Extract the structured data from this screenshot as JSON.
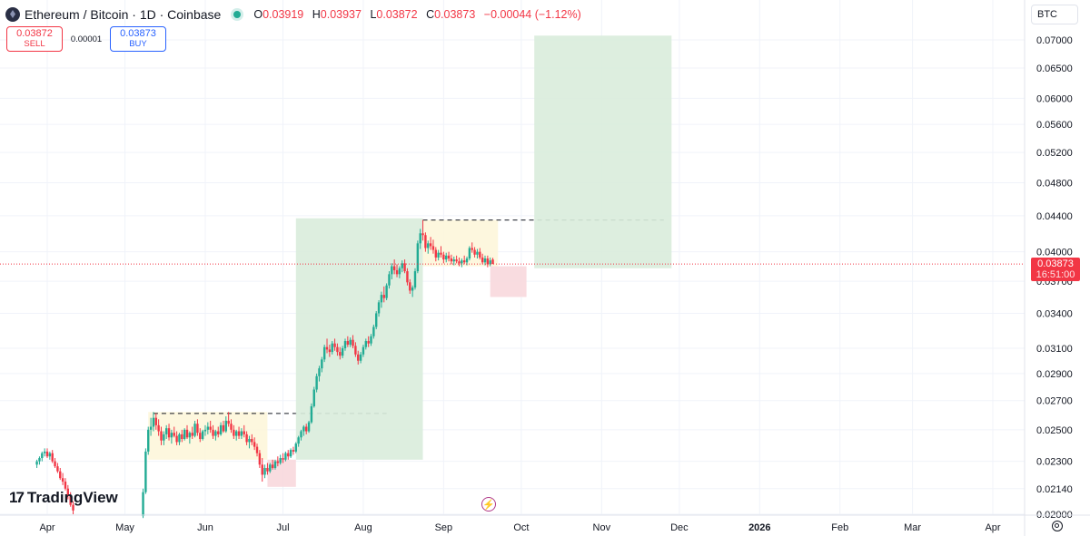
{
  "legend": {
    "title": "Ethereum / Bitcoin · 1D · Coinbase",
    "open_label": "O",
    "open": "0.03919",
    "high_label": "H",
    "high": "0.03937",
    "low_label": "L",
    "low": "0.03872",
    "close_label": "C",
    "close": "0.03873",
    "change": "−0.00044 (−1.12%)"
  },
  "trade": {
    "sell_price": "0.03872",
    "sell_label": "SELL",
    "spread": "0.00001",
    "buy_price": "0.03873",
    "buy_label": "BUY"
  },
  "currency": "BTC",
  "price_tag": {
    "price": "0.03873",
    "timer": "16:51:00"
  },
  "brand": {
    "name": "TradingView"
  },
  "colors": {
    "up": "#22ab94",
    "down": "#f23645",
    "target": "#d9ecdc",
    "stop": "#f8d6da",
    "range": "#fdf6d8"
  },
  "chart_data": {
    "type": "candlestick",
    "symbol": "Ethereum / Bitcoin",
    "interval": "1D",
    "exchange": "Coinbase",
    "y_axis": {
      "scale": "log",
      "ticks": [
        "0.07000",
        "0.06500",
        "0.06000",
        "0.05600",
        "0.05200",
        "0.04800",
        "0.04400",
        "0.04000",
        "0.03700",
        "0.03400",
        "0.03100",
        "0.02900",
        "0.02700",
        "0.02500",
        "0.02300",
        "0.02140",
        "0.02000"
      ]
    },
    "x_axis": {
      "ticks": [
        {
          "label": "Apr",
          "date": "2025-04-01",
          "bold": false
        },
        {
          "label": "May",
          "date": "2025-05-01",
          "bold": false
        },
        {
          "label": "Jun",
          "date": "2025-06-01",
          "bold": false
        },
        {
          "label": "Jul",
          "date": "2025-07-01",
          "bold": false
        },
        {
          "label": "Aug",
          "date": "2025-08-01",
          "bold": false
        },
        {
          "label": "Sep",
          "date": "2025-09-01",
          "bold": false
        },
        {
          "label": "Oct",
          "date": "2025-10-01",
          "bold": false
        },
        {
          "label": "Nov",
          "date": "2025-11-01",
          "bold": false
        },
        {
          "label": "Dec",
          "date": "2025-12-01",
          "bold": false
        },
        {
          "label": "2026",
          "date": "2026-01-01",
          "bold": true
        },
        {
          "label": "Feb",
          "date": "2026-02-01",
          "bold": false
        },
        {
          "label": "Mar",
          "date": "2026-03-01",
          "bold": false
        },
        {
          "label": "Apr",
          "date": "2026-04-01",
          "bold": false
        }
      ]
    },
    "last_price": 0.03873,
    "annotations": [
      {
        "type": "range",
        "from": "2025-05-10",
        "to": "2025-06-25",
        "top": 0.0262,
        "bottom": 0.0231
      },
      {
        "type": "dashed_line",
        "from": "2025-05-12",
        "to": "2025-08-10",
        "y": 0.0261
      },
      {
        "type": "stop_zone",
        "from": "2025-06-25",
        "to": "2025-07-06",
        "top": 0.0231,
        "bottom": 0.0215
      },
      {
        "type": "target_zone",
        "from": "2025-07-06",
        "to": "2025-08-24",
        "top": 0.0437,
        "bottom": 0.0231
      },
      {
        "type": "range",
        "from": "2025-08-24",
        "to": "2025-09-22",
        "top": 0.0435,
        "bottom": 0.0385
      },
      {
        "type": "dashed_line",
        "from": "2025-08-24",
        "to": "2025-11-25",
        "y": 0.0435
      },
      {
        "type": "stop_zone",
        "from": "2025-09-19",
        "to": "2025-10-03",
        "top": 0.0385,
        "bottom": 0.0355
      },
      {
        "type": "target_zone",
        "from": "2025-10-06",
        "to": "2025-11-28",
        "top": 0.0708,
        "bottom": 0.0383
      }
    ],
    "candles": [
      [
        "2025-03-28",
        0.0228,
        0.0231,
        0.0226,
        0.023
      ],
      [
        "2025-03-29",
        0.023,
        0.0233,
        0.0228,
        0.0232
      ],
      [
        "2025-03-30",
        0.0232,
        0.0236,
        0.023,
        0.0235
      ],
      [
        "2025-03-31",
        0.0235,
        0.0238,
        0.0233,
        0.0236
      ],
      [
        "2025-04-01",
        0.0236,
        0.0238,
        0.0232,
        0.0233
      ],
      [
        "2025-04-02",
        0.0233,
        0.0236,
        0.0231,
        0.0235
      ],
      [
        "2025-04-03",
        0.0235,
        0.0237,
        0.0229,
        0.023
      ],
      [
        "2025-04-04",
        0.023,
        0.0232,
        0.0226,
        0.0227
      ],
      [
        "2025-04-05",
        0.0227,
        0.0229,
        0.0223,
        0.0224
      ],
      [
        "2025-04-06",
        0.0224,
        0.0226,
        0.0219,
        0.022
      ],
      [
        "2025-04-07",
        0.022,
        0.0223,
        0.0216,
        0.0218
      ],
      [
        "2025-04-08",
        0.0218,
        0.022,
        0.0213,
        0.0214
      ],
      [
        "2025-04-09",
        0.0214,
        0.0216,
        0.0208,
        0.021
      ],
      [
        "2025-04-10",
        0.021,
        0.0212,
        0.0204,
        0.0205
      ],
      [
        "2025-04-11",
        0.0205,
        0.0207,
        0.02,
        0.0202
      ],
      [
        "2025-05-08",
        0.0199,
        0.0214,
        0.0198,
        0.0212
      ],
      [
        "2025-05-09",
        0.0212,
        0.0238,
        0.0211,
        0.0236
      ],
      [
        "2025-05-10",
        0.0236,
        0.0252,
        0.0234,
        0.025
      ],
      [
        "2025-05-11",
        0.025,
        0.0258,
        0.0246,
        0.0252
      ],
      [
        "2025-05-12",
        0.0252,
        0.0262,
        0.0249,
        0.0258
      ],
      [
        "2025-05-13",
        0.0258,
        0.0261,
        0.025,
        0.0253
      ],
      [
        "2025-05-14",
        0.0253,
        0.0257,
        0.0246,
        0.0249
      ],
      [
        "2025-05-15",
        0.0249,
        0.0252,
        0.024,
        0.0243
      ],
      [
        "2025-05-16",
        0.0243,
        0.0249,
        0.024,
        0.0247
      ],
      [
        "2025-05-17",
        0.0247,
        0.0253,
        0.0244,
        0.0251
      ],
      [
        "2025-05-18",
        0.0251,
        0.0254,
        0.0243,
        0.0245
      ],
      [
        "2025-05-19",
        0.0245,
        0.025,
        0.0241,
        0.0248
      ],
      [
        "2025-05-20",
        0.0248,
        0.0252,
        0.0245,
        0.0246
      ],
      [
        "2025-05-21",
        0.0246,
        0.0249,
        0.024,
        0.0242
      ],
      [
        "2025-05-22",
        0.0242,
        0.0248,
        0.024,
        0.0247
      ],
      [
        "2025-05-23",
        0.0247,
        0.025,
        0.0242,
        0.0244
      ],
      [
        "2025-05-24",
        0.0244,
        0.0251,
        0.0243,
        0.025
      ],
      [
        "2025-05-25",
        0.025,
        0.0253,
        0.0244,
        0.0245
      ],
      [
        "2025-05-26",
        0.0245,
        0.0249,
        0.0241,
        0.0248
      ],
      [
        "2025-05-27",
        0.0248,
        0.0252,
        0.0244,
        0.0246
      ],
      [
        "2025-05-28",
        0.0246,
        0.0256,
        0.0245,
        0.0254
      ],
      [
        "2025-05-29",
        0.0254,
        0.0257,
        0.0246,
        0.0248
      ],
      [
        "2025-05-30",
        0.0248,
        0.0251,
        0.0242,
        0.0244
      ],
      [
        "2025-05-31",
        0.0244,
        0.025,
        0.0243,
        0.0249
      ],
      [
        "2025-06-01",
        0.0249,
        0.0253,
        0.0246,
        0.025
      ],
      [
        "2025-06-02",
        0.025,
        0.0255,
        0.0247,
        0.0252
      ],
      [
        "2025-06-03",
        0.0252,
        0.0256,
        0.0248,
        0.025
      ],
      [
        "2025-06-04",
        0.025,
        0.0253,
        0.0244,
        0.0246
      ],
      [
        "2025-06-05",
        0.0246,
        0.025,
        0.0243,
        0.0249
      ],
      [
        "2025-06-06",
        0.0249,
        0.0252,
        0.0245,
        0.0247
      ],
      [
        "2025-06-07",
        0.0247,
        0.0255,
        0.0246,
        0.0253
      ],
      [
        "2025-06-08",
        0.0253,
        0.0256,
        0.0248,
        0.0249
      ],
      [
        "2025-06-09",
        0.0249,
        0.0259,
        0.0248,
        0.0256
      ],
      [
        "2025-06-10",
        0.0256,
        0.0262,
        0.0252,
        0.0254
      ],
      [
        "2025-06-11",
        0.0254,
        0.0257,
        0.0248,
        0.025
      ],
      [
        "2025-06-12",
        0.025,
        0.0253,
        0.0244,
        0.0246
      ],
      [
        "2025-06-13",
        0.0246,
        0.025,
        0.0243,
        0.0249
      ],
      [
        "2025-06-14",
        0.0249,
        0.0252,
        0.0244,
        0.0246
      ],
      [
        "2025-06-15",
        0.0246,
        0.0251,
        0.0244,
        0.0249
      ],
      [
        "2025-06-16",
        0.0249,
        0.0253,
        0.0245,
        0.0247
      ],
      [
        "2025-06-17",
        0.0247,
        0.0249,
        0.024,
        0.0242
      ],
      [
        "2025-06-18",
        0.0242,
        0.0246,
        0.0238,
        0.0244
      ],
      [
        "2025-06-19",
        0.0244,
        0.0247,
        0.024,
        0.0242
      ],
      [
        "2025-06-20",
        0.0242,
        0.0245,
        0.0237,
        0.0239
      ],
      [
        "2025-06-21",
        0.0239,
        0.0241,
        0.0233,
        0.0235
      ],
      [
        "2025-06-22",
        0.0235,
        0.0237,
        0.0226,
        0.0228
      ],
      [
        "2025-06-23",
        0.0228,
        0.0232,
        0.0218,
        0.0222
      ],
      [
        "2025-06-24",
        0.0222,
        0.0228,
        0.022,
        0.0226
      ],
      [
        "2025-06-25",
        0.0226,
        0.0229,
        0.0222,
        0.0224
      ],
      [
        "2025-06-26",
        0.0224,
        0.0229,
        0.0223,
        0.0228
      ],
      [
        "2025-06-27",
        0.0228,
        0.0231,
        0.0225,
        0.0226
      ],
      [
        "2025-06-28",
        0.0226,
        0.0231,
        0.0225,
        0.023
      ],
      [
        "2025-06-29",
        0.023,
        0.0233,
        0.0227,
        0.0229
      ],
      [
        "2025-06-30",
        0.0229,
        0.0234,
        0.0228,
        0.0232
      ],
      [
        "2025-07-01",
        0.0232,
        0.0235,
        0.0229,
        0.0231
      ],
      [
        "2025-07-02",
        0.0231,
        0.0236,
        0.023,
        0.0235
      ],
      [
        "2025-07-03",
        0.0235,
        0.0237,
        0.0231,
        0.0233
      ],
      [
        "2025-07-04",
        0.0233,
        0.0238,
        0.0232,
        0.0237
      ],
      [
        "2025-07-05",
        0.0237,
        0.0239,
        0.0234,
        0.0236
      ],
      [
        "2025-07-06",
        0.0236,
        0.0242,
        0.0235,
        0.0241
      ],
      [
        "2025-07-07",
        0.0241,
        0.0246,
        0.0239,
        0.0245
      ],
      [
        "2025-07-08",
        0.0245,
        0.025,
        0.0243,
        0.0249
      ],
      [
        "2025-07-09",
        0.0249,
        0.0253,
        0.0246,
        0.0252
      ],
      [
        "2025-07-10",
        0.0252,
        0.0254,
        0.0247,
        0.0249
      ],
      [
        "2025-07-11",
        0.0249,
        0.0256,
        0.0248,
        0.0255
      ],
      [
        "2025-07-12",
        0.0255,
        0.0268,
        0.0254,
        0.0266
      ],
      [
        "2025-07-13",
        0.0266,
        0.028,
        0.0265,
        0.0278
      ],
      [
        "2025-07-14",
        0.0278,
        0.029,
        0.0276,
        0.0288
      ],
      [
        "2025-07-15",
        0.0288,
        0.0296,
        0.0284,
        0.0294
      ],
      [
        "2025-07-16",
        0.0294,
        0.0303,
        0.0291,
        0.0301
      ],
      [
        "2025-07-17",
        0.0301,
        0.0313,
        0.0299,
        0.0311
      ],
      [
        "2025-07-18",
        0.0311,
        0.0318,
        0.0306,
        0.0309
      ],
      [
        "2025-07-19",
        0.0309,
        0.0313,
        0.0303,
        0.0307
      ],
      [
        "2025-07-20",
        0.0307,
        0.0316,
        0.0305,
        0.0314
      ],
      [
        "2025-07-21",
        0.0314,
        0.0318,
        0.0308,
        0.0311
      ],
      [
        "2025-07-22",
        0.0311,
        0.0314,
        0.0304,
        0.0307
      ],
      [
        "2025-07-23",
        0.0307,
        0.0311,
        0.0301,
        0.0304
      ],
      [
        "2025-07-24",
        0.0304,
        0.0312,
        0.0302,
        0.031
      ],
      [
        "2025-07-25",
        0.031,
        0.0318,
        0.0308,
        0.0316
      ],
      [
        "2025-07-26",
        0.0316,
        0.032,
        0.0311,
        0.0313
      ],
      [
        "2025-07-27",
        0.0313,
        0.0319,
        0.0311,
        0.0317
      ],
      [
        "2025-07-28",
        0.0317,
        0.0321,
        0.031,
        0.0312
      ],
      [
        "2025-07-29",
        0.0312,
        0.0315,
        0.0303,
        0.0305
      ],
      [
        "2025-07-30",
        0.0305,
        0.0308,
        0.0297,
        0.03
      ],
      [
        "2025-07-31",
        0.03,
        0.0307,
        0.0298,
        0.0305
      ],
      [
        "2025-08-01",
        0.0305,
        0.0313,
        0.0303,
        0.0311
      ],
      [
        "2025-08-02",
        0.0311,
        0.0318,
        0.0309,
        0.0316
      ],
      [
        "2025-08-03",
        0.0316,
        0.032,
        0.0311,
        0.0314
      ],
      [
        "2025-08-04",
        0.0314,
        0.0322,
        0.0312,
        0.032
      ],
      [
        "2025-08-05",
        0.032,
        0.033,
        0.0318,
        0.0328
      ],
      [
        "2025-08-06",
        0.0328,
        0.0342,
        0.0326,
        0.034
      ],
      [
        "2025-08-07",
        0.034,
        0.0352,
        0.0337,
        0.035
      ],
      [
        "2025-08-08",
        0.035,
        0.036,
        0.0345,
        0.0357
      ],
      [
        "2025-08-09",
        0.0357,
        0.0365,
        0.035,
        0.0354
      ],
      [
        "2025-08-10",
        0.0354,
        0.0368,
        0.0352,
        0.0366
      ],
      [
        "2025-08-11",
        0.0366,
        0.038,
        0.0363,
        0.0377
      ],
      [
        "2025-08-12",
        0.0377,
        0.0388,
        0.0372,
        0.0385
      ],
      [
        "2025-08-13",
        0.0385,
        0.0392,
        0.0377,
        0.0381
      ],
      [
        "2025-08-14",
        0.0381,
        0.0387,
        0.0374,
        0.0377
      ],
      [
        "2025-08-15",
        0.0377,
        0.0385,
        0.0373,
        0.0383
      ],
      [
        "2025-08-16",
        0.0383,
        0.0391,
        0.0379,
        0.0388
      ],
      [
        "2025-08-17",
        0.0388,
        0.0392,
        0.0378,
        0.038
      ],
      [
        "2025-08-18",
        0.038,
        0.0383,
        0.0366,
        0.0369
      ],
      [
        "2025-08-19",
        0.0369,
        0.0372,
        0.0358,
        0.0361
      ],
      [
        "2025-08-20",
        0.0361,
        0.0366,
        0.0355,
        0.0364
      ],
      [
        "2025-08-21",
        0.0364,
        0.0383,
        0.0362,
        0.038
      ],
      [
        "2025-08-22",
        0.038,
        0.0412,
        0.0378,
        0.0409
      ],
      [
        "2025-08-23",
        0.0409,
        0.0425,
        0.0403,
        0.042
      ],
      [
        "2025-08-24",
        0.042,
        0.0435,
        0.0412,
        0.0418
      ],
      [
        "2025-08-25",
        0.0418,
        0.0421,
        0.04,
        0.0404
      ],
      [
        "2025-08-26",
        0.0404,
        0.0412,
        0.0398,
        0.0409
      ],
      [
        "2025-08-27",
        0.0409,
        0.0416,
        0.0402,
        0.0406
      ],
      [
        "2025-08-28",
        0.0406,
        0.0413,
        0.0398,
        0.0402
      ],
      [
        "2025-08-29",
        0.0402,
        0.0405,
        0.039,
        0.0394
      ],
      [
        "2025-08-30",
        0.0394,
        0.0402,
        0.0391,
        0.0399
      ],
      [
        "2025-08-31",
        0.0399,
        0.0406,
        0.0394,
        0.0397
      ],
      [
        "2025-09-01",
        0.0397,
        0.04,
        0.0388,
        0.0392
      ],
      [
        "2025-09-02",
        0.0392,
        0.0399,
        0.0389,
        0.0396
      ],
      [
        "2025-09-03",
        0.0396,
        0.04,
        0.039,
        0.0393
      ],
      [
        "2025-09-04",
        0.0393,
        0.0397,
        0.0387,
        0.039
      ],
      [
        "2025-09-05",
        0.039,
        0.0395,
        0.0386,
        0.0392
      ],
      [
        "2025-09-06",
        0.0392,
        0.0396,
        0.0388,
        0.039
      ],
      [
        "2025-09-07",
        0.039,
        0.0394,
        0.0385,
        0.0388
      ],
      [
        "2025-09-08",
        0.0388,
        0.0393,
        0.0384,
        0.0391
      ],
      [
        "2025-09-09",
        0.0391,
        0.0396,
        0.0387,
        0.0389
      ],
      [
        "2025-09-10",
        0.0389,
        0.0395,
        0.0386,
        0.0393
      ],
      [
        "2025-09-11",
        0.0393,
        0.0406,
        0.0391,
        0.0404
      ],
      [
        "2025-09-12",
        0.0404,
        0.041,
        0.0399,
        0.0402
      ],
      [
        "2025-09-13",
        0.0402,
        0.0405,
        0.0394,
        0.0397
      ],
      [
        "2025-09-14",
        0.0397,
        0.0403,
        0.0393,
        0.04
      ],
      [
        "2025-09-15",
        0.04,
        0.0404,
        0.0392,
        0.0394
      ],
      [
        "2025-09-16",
        0.0394,
        0.0398,
        0.0387,
        0.0389
      ],
      [
        "2025-09-17",
        0.0389,
        0.0396,
        0.0386,
        0.0393
      ],
      [
        "2025-09-18",
        0.0393,
        0.0396,
        0.0384,
        0.0387
      ],
      [
        "2025-09-19",
        0.0387,
        0.0394,
        0.0385,
        0.0391
      ],
      [
        "2025-09-20",
        0.03919,
        0.03937,
        0.03872,
        0.03873
      ]
    ]
  }
}
